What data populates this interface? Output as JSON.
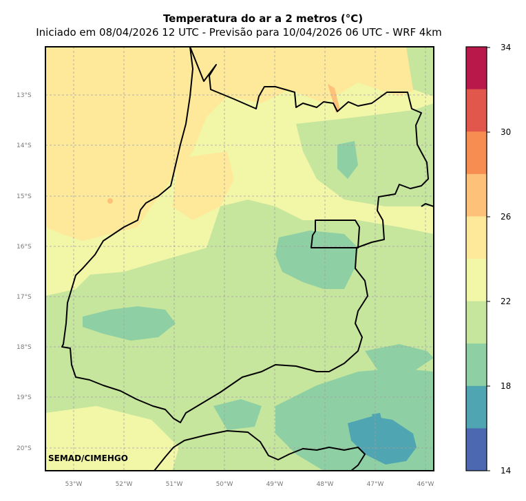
{
  "title": "Temperatura do ar a 2 metros (°C)",
  "subtitle": "Iniciado em 08/04/2026 12 UTC - Previsão para 10/04/2026 06 UTC - WRF 4km",
  "credit": "SEMAD/CIMEHGO",
  "lat_labels": [
    "13°S",
    "14°S",
    "15°S",
    "16°S",
    "17°S",
    "18°S",
    "19°S",
    "20°S"
  ],
  "lon_labels": [
    "53°W",
    "52°W",
    "51°W",
    "50°W",
    "49°W",
    "48°W",
    "47°W",
    "46°W"
  ],
  "colorbar": {
    "labels": [
      "34",
      "30",
      "26",
      "22",
      "18",
      "14"
    ],
    "levels_top_to_bottom": [
      34,
      32,
      30,
      28,
      26,
      24,
      22,
      20,
      18,
      16,
      14
    ],
    "colors_top_to_bottom": [
      "#b8184a",
      "#e2574c",
      "#f88d52",
      "#fdc17a",
      "#fee89a",
      "#f2f7a8",
      "#c6e59d",
      "#8ed0a4",
      "#4fa5b1",
      "#4b68b0"
    ]
  },
  "palette": {
    "yellow": "#fee89a",
    "cream": "#f2f7a8",
    "green": "#c6e59d",
    "mint": "#8ed0a4",
    "teal": "#4fa5b1",
    "orange_light": "#fdc17a"
  }
}
